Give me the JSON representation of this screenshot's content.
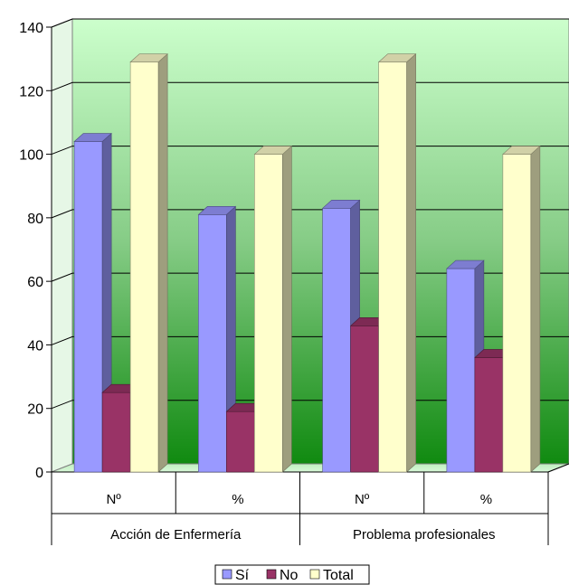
{
  "chart_data": {
    "type": "bar",
    "subtype": "3d-clustered-column",
    "title": "",
    "xlabel": "",
    "ylabel": "",
    "ylim": [
      0,
      140
    ],
    "yticks": [
      0,
      20,
      40,
      60,
      80,
      100,
      120,
      140
    ],
    "grid": true,
    "legend_position": "bottom",
    "categories": [
      "Nº",
      "%",
      "Nº",
      "%"
    ],
    "groups": [
      {
        "label": "Acción de Enfermería",
        "span": 2
      },
      {
        "label": "Problema profesionales",
        "span": 2
      }
    ],
    "series": [
      {
        "name": "Sí",
        "color": "#9999ff",
        "values": [
          104,
          81,
          83,
          64
        ]
      },
      {
        "name": "No",
        "color": "#993366",
        "values": [
          25,
          19,
          46,
          36
        ]
      },
      {
        "name": "Total",
        "color": "#ffffcc",
        "values": [
          129,
          100,
          129,
          100
        ]
      }
    ]
  }
}
